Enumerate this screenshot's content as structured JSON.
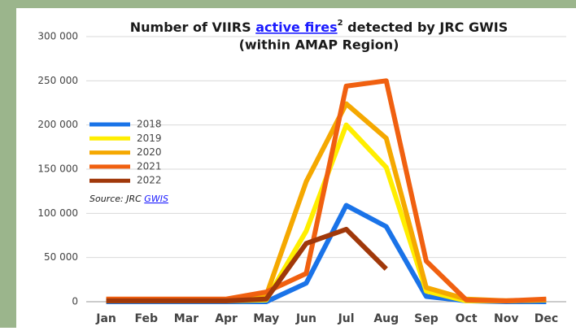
{
  "chart_data": {
    "type": "line",
    "title": {
      "prefix": "Number of VIIRS ",
      "link": "active fires",
      "sup": "2",
      "suffix": " detected by JRC GWIS",
      "line2": "(within AMAP Region)"
    },
    "source": {
      "prefix": "Source: JRC ",
      "link": "GWIS"
    },
    "categories": [
      "Jan",
      "Feb",
      "Mar",
      "Apr",
      "May",
      "Jun",
      "Jul",
      "Aug",
      "Sep",
      "Oct",
      "Nov",
      "Dec"
    ],
    "series": [
      {
        "name": "2018",
        "color": "#1a73e8",
        "values": [
          0,
          0,
          0,
          0,
          0,
          21000,
          109000,
          85000,
          6000,
          1000,
          0,
          0
        ]
      },
      {
        "name": "2019",
        "color": "#ffee00",
        "values": [
          1000,
          1000,
          1000,
          1000,
          2000,
          80000,
          200000,
          152000,
          12000,
          1000,
          1000,
          2000
        ]
      },
      {
        "name": "2020",
        "color": "#f5a800",
        "values": [
          2000,
          2000,
          2000,
          2000,
          7000,
          136000,
          224000,
          185000,
          16000,
          3000,
          1000,
          2000
        ]
      },
      {
        "name": "2021",
        "color": "#f06010",
        "values": [
          3000,
          3000,
          3000,
          3000,
          11000,
          32000,
          244000,
          250000,
          46000,
          2000,
          1000,
          3000
        ]
      },
      {
        "name": "2022",
        "color": "#a0380a",
        "values": [
          1000,
          1000,
          1000,
          1000,
          3000,
          66000,
          82000,
          37000,
          null,
          null,
          null,
          null
        ]
      }
    ],
    "ylim": [
      0,
      300000
    ],
    "yticks": [
      0,
      {
        "value": 50000,
        "label": "50 000"
      },
      {
        "value": 100000,
        "label": "100 000"
      },
      {
        "value": 150000,
        "label": "150 000"
      },
      {
        "value": 200000,
        "label": "200 000"
      },
      {
        "value": 250000,
        "label": "250 000"
      },
      {
        "value": 300000,
        "label": "300 000"
      }
    ],
    "grid": true
  }
}
